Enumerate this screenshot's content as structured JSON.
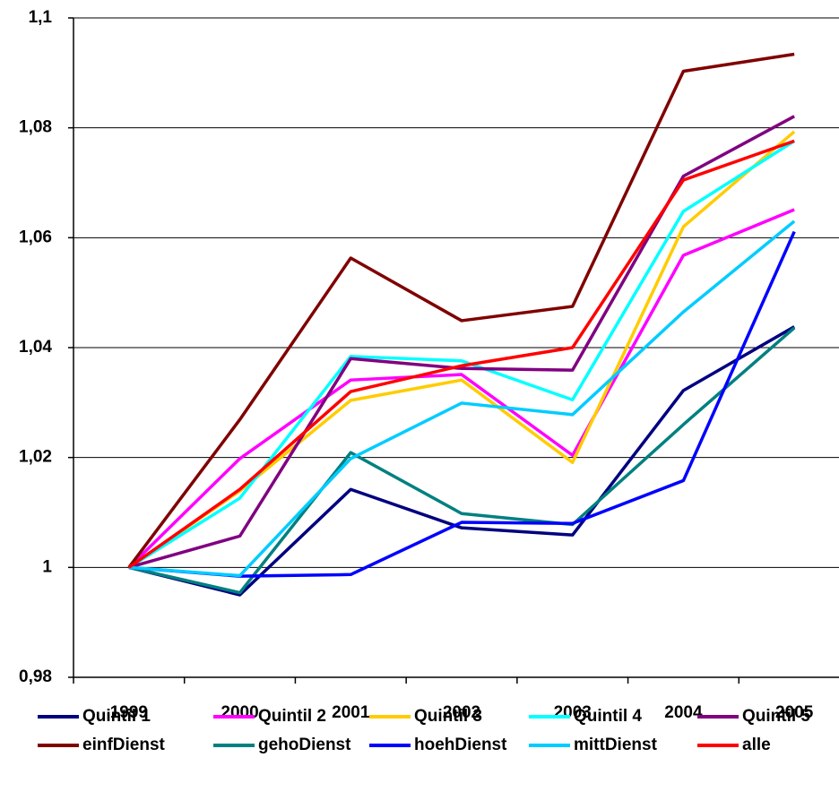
{
  "chart_data": {
    "type": "line",
    "categories": [
      "1999",
      "2000",
      "2001",
      "2002",
      "2003",
      "2004",
      "2005"
    ],
    "ylim": [
      0.98,
      1.1
    ],
    "yticks": [
      {
        "value": 0.98,
        "label": "0,98"
      },
      1,
      {
        "value": 1.02,
        "label": "1,02"
      },
      {
        "value": 1.04,
        "label": "1,04"
      },
      {
        "value": 1.06,
        "label": "1,06"
      },
      {
        "value": 1.08,
        "label": "1,08"
      },
      {
        "value": 1.1,
        "label": "1,1"
      }
    ],
    "grid": true,
    "legend": "bottom",
    "series": [
      {
        "name": "Quintil 1",
        "color": "#000080",
        "values": [
          1,
          0.995,
          1.0142,
          1.0072,
          1.0059,
          1.0322,
          1.0438
        ]
      },
      {
        "name": "Quintil 2",
        "color": "#ff00ff",
        "values": [
          1,
          1.0198,
          1.0341,
          1.0351,
          1.0204,
          1.0568,
          1.0651
        ]
      },
      {
        "name": "Quintil 3",
        "color": "#ffcc00",
        "values": [
          1,
          1.0139,
          1.0304,
          1.0341,
          1.0191,
          1.062,
          1.0793
        ]
      },
      {
        "name": "Quintil 4",
        "color": "#00ffff",
        "values": [
          1,
          1.0126,
          1.0384,
          1.0376,
          1.0305,
          1.0648,
          1.0776
        ]
      },
      {
        "name": "Quintil 5",
        "color": "#800080",
        "values": [
          1,
          1.0057,
          1.038,
          1.0362,
          1.0359,
          1.0712,
          1.0821
        ]
      },
      {
        "name": "einfDienst",
        "color": "#800000",
        "values": [
          1,
          1.0269,
          1.0563,
          1.0449,
          1.0475,
          1.0903,
          1.0934
        ]
      },
      {
        "name": "gehoDienst",
        "color": "#008080",
        "values": [
          1,
          0.9954,
          1.0209,
          1.0098,
          1.0078,
          1.026,
          1.0436
        ]
      },
      {
        "name": "hoehDienst",
        "color": "#0000ff",
        "values": [
          1,
          0.9984,
          0.9987,
          1.0082,
          1.008,
          1.0158,
          1.0611
        ]
      },
      {
        "name": "mittDienst",
        "color": "#00ccff",
        "values": [
          1,
          0.9985,
          1.0198,
          1.0299,
          1.0278,
          1.0465,
          1.063
        ]
      },
      {
        "name": "alle",
        "color": "#ff0000",
        "values": [
          1,
          1.0142,
          1.032,
          1.0367,
          1.04,
          1.0705,
          1.0776
        ]
      }
    ]
  }
}
